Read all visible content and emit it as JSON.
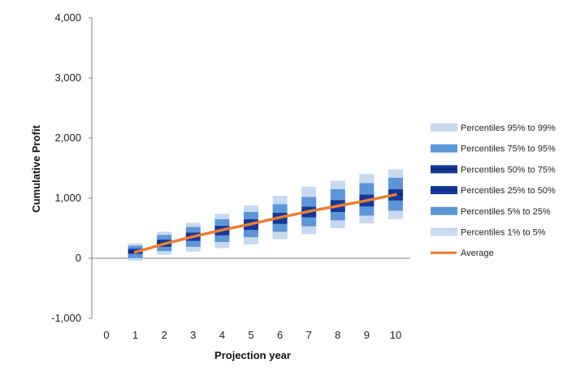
{
  "chart_data": {
    "type": "box",
    "xlabel": "Projection year",
    "ylabel": "Cumulative Profit",
    "x_ticks": [
      "0",
      "1",
      "2",
      "3",
      "4",
      "5",
      "6",
      "7",
      "8",
      "9",
      "10"
    ],
    "y_ticks": [
      "-1,000",
      "0",
      "1,000",
      "2,000",
      "3,000",
      "4,000"
    ],
    "ylim": [
      -1000,
      4000
    ],
    "grid": false,
    "legend_position": "right",
    "colors": {
      "light": "#c6d9f1",
      "mid": "#5b96d8",
      "dark": "#13389a",
      "average": "#ed7d31",
      "axis": "#808080"
    },
    "legend": [
      {
        "label": "Percentiles 95% to 99%",
        "kind": "light"
      },
      {
        "label": "Percentiles 75% to 95%",
        "kind": "mid"
      },
      {
        "label": "Percentiles 50% to 75%",
        "kind": "dark"
      },
      {
        "label": "Percentiles 25% to 50%",
        "kind": "dark"
      },
      {
        "label": "Percentiles 5% to 25%",
        "kind": "mid"
      },
      {
        "label": "Percentiles 1% to 5%",
        "kind": "light"
      },
      {
        "label": "Average",
        "kind": "line"
      }
    ],
    "years": [
      1,
      2,
      3,
      4,
      5,
      6,
      7,
      8,
      9,
      10
    ],
    "percentiles": {
      "p1": [
        -40,
        60,
        110,
        170,
        230,
        320,
        400,
        500,
        580,
        650
      ],
      "p5": [
        0,
        120,
        190,
        270,
        350,
        440,
        530,
        630,
        710,
        790
      ],
      "p25": [
        70,
        190,
        290,
        380,
        470,
        570,
        680,
        770,
        860,
        960
      ],
      "p50": [
        110,
        250,
        370,
        470,
        570,
        680,
        780,
        880,
        970,
        1070
      ],
      "p75": [
        160,
        310,
        430,
        540,
        650,
        760,
        860,
        970,
        1060,
        1150
      ],
      "p95": [
        210,
        390,
        520,
        650,
        770,
        900,
        1020,
        1150,
        1250,
        1340
      ],
      "p99": [
        250,
        440,
        590,
        740,
        880,
        1040,
        1190,
        1290,
        1400,
        1480
      ]
    },
    "average": [
      100,
      240,
      360,
      470,
      570,
      680,
      780,
      870,
      960,
      1060
    ]
  }
}
